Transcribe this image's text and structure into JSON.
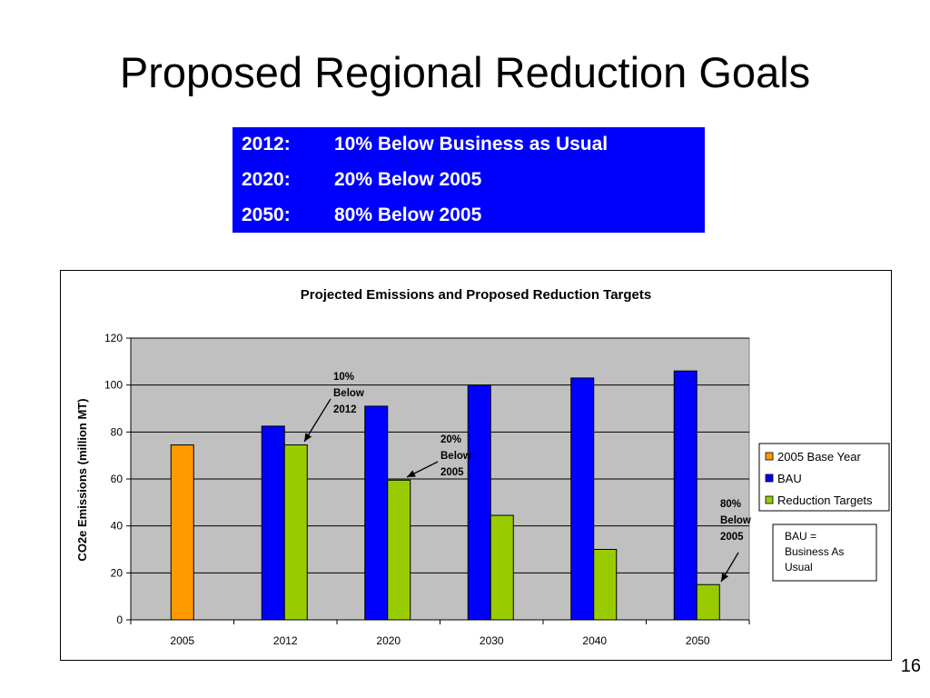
{
  "slide": {
    "title": "Proposed Regional Reduction Goals",
    "page_number": "16"
  },
  "goals": [
    {
      "year": "2012:",
      "text": "10% Below Business as Usual"
    },
    {
      "year": "2020:",
      "text": "20% Below 2005"
    },
    {
      "year": "2050:",
      "text": "80% Below 2005"
    }
  ],
  "colors": {
    "goals_box": "#0000FF",
    "base_year": "#FF9900",
    "bau": "#0000FF",
    "reduction": "#99CC00",
    "plot_background": "#C0C0C0"
  },
  "chart_data": {
    "type": "bar",
    "title": "Projected Emissions and Proposed Reduction Targets",
    "xlabel": "",
    "ylabel": "CO2e Emissions (million MT)",
    "ylim": [
      0,
      120
    ],
    "yticks": [
      0,
      20,
      40,
      60,
      80,
      100,
      120
    ],
    "grid": true,
    "legend_position": "right",
    "categories": [
      "2005",
      "2012",
      "2020",
      "2030",
      "2040",
      "2050"
    ],
    "series": [
      {
        "name": "2005 Base Year",
        "values": [
          74.5,
          null,
          null,
          null,
          null,
          null
        ]
      },
      {
        "name": "BAU",
        "values": [
          null,
          82.5,
          91,
          100,
          103,
          106
        ]
      },
      {
        "name": "Reduction Targets",
        "values": [
          null,
          74.5,
          59.5,
          44.5,
          30,
          15
        ]
      }
    ],
    "annotations": [
      {
        "lines": [
          "10%",
          "Below",
          "2012"
        ],
        "target": "2012"
      },
      {
        "lines": [
          "20%",
          "Below",
          "2005"
        ],
        "target": "2020"
      },
      {
        "lines": [
          "80%",
          "Below",
          "2005"
        ],
        "target": "2050"
      }
    ],
    "note": [
      "BAU =",
      "Business As",
      "Usual"
    ]
  }
}
